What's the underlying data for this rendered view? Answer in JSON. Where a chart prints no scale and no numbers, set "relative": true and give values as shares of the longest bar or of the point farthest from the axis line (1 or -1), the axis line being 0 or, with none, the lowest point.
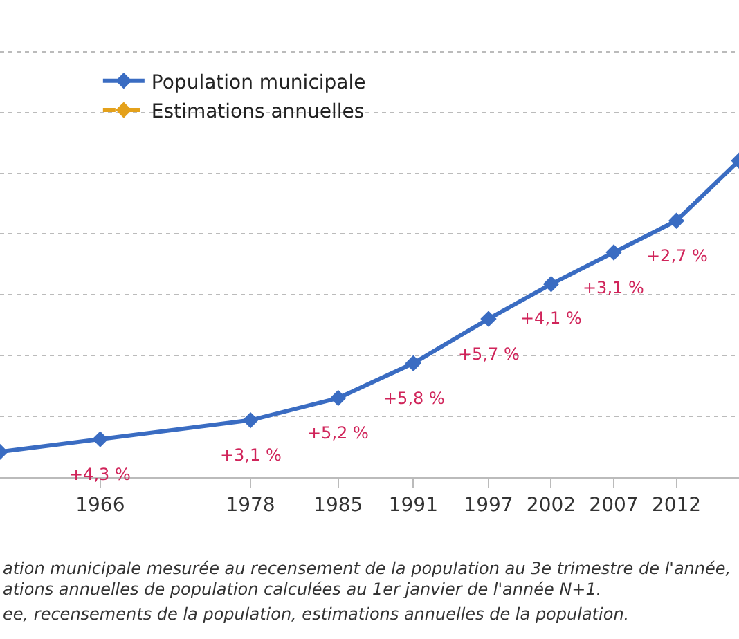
{
  "chart_data": {
    "type": "line",
    "relative": true,
    "x": [
      1958,
      1966,
      1978,
      1985,
      1991,
      1997,
      2002,
      2007,
      2012,
      2017
    ],
    "xlim": [
      1958,
      2017
    ],
    "xticks": [
      1966,
      1978,
      1985,
      1991,
      1997,
      2002,
      2007,
      2012
    ],
    "series": [
      {
        "name": "Population municipale",
        "color": "#3a6cc2",
        "values": [
          0.08,
          0.12,
          0.18,
          0.25,
          0.36,
          0.5,
          0.61,
          0.71,
          0.81,
          1
        ]
      },
      {
        "name": "Estimations annuelles",
        "color": "#e4a11b",
        "line_style": "dashed",
        "values": [
          null,
          null,
          null,
          null,
          null,
          null,
          null,
          null,
          null,
          null
        ]
      }
    ],
    "marker": "diamond",
    "grid": "y",
    "legend": "top left",
    "annotations": [
      {
        "text": "+4,3 %",
        "x": 1966,
        "y": 0.12
      },
      {
        "text": "+3,1 %",
        "x": 1978,
        "y": 0.18
      },
      {
        "text": "+5,2 %",
        "x": 1985,
        "y": 0.25
      },
      {
        "text": "+5,8 %",
        "x": 1991,
        "y": 0.36
      },
      {
        "text": "+5,7 %",
        "x": 1997,
        "y": 0.5
      },
      {
        "text": "+4,1 %",
        "x": 2002,
        "y": 0.61
      },
      {
        "text": "+3,1 %",
        "x": 2007,
        "y": 0.71
      },
      {
        "text": "+2,7 %",
        "x": 2012,
        "y": 0.81
      },
      "ation municipale mesurée au recensement de la population au 3e trimestre de l'année,",
      "ations annuelles de population calculées au 1er janvier de l'année N+1.",
      "ee, recensements de la population, estimations annuelles de la population."
    ]
  }
}
